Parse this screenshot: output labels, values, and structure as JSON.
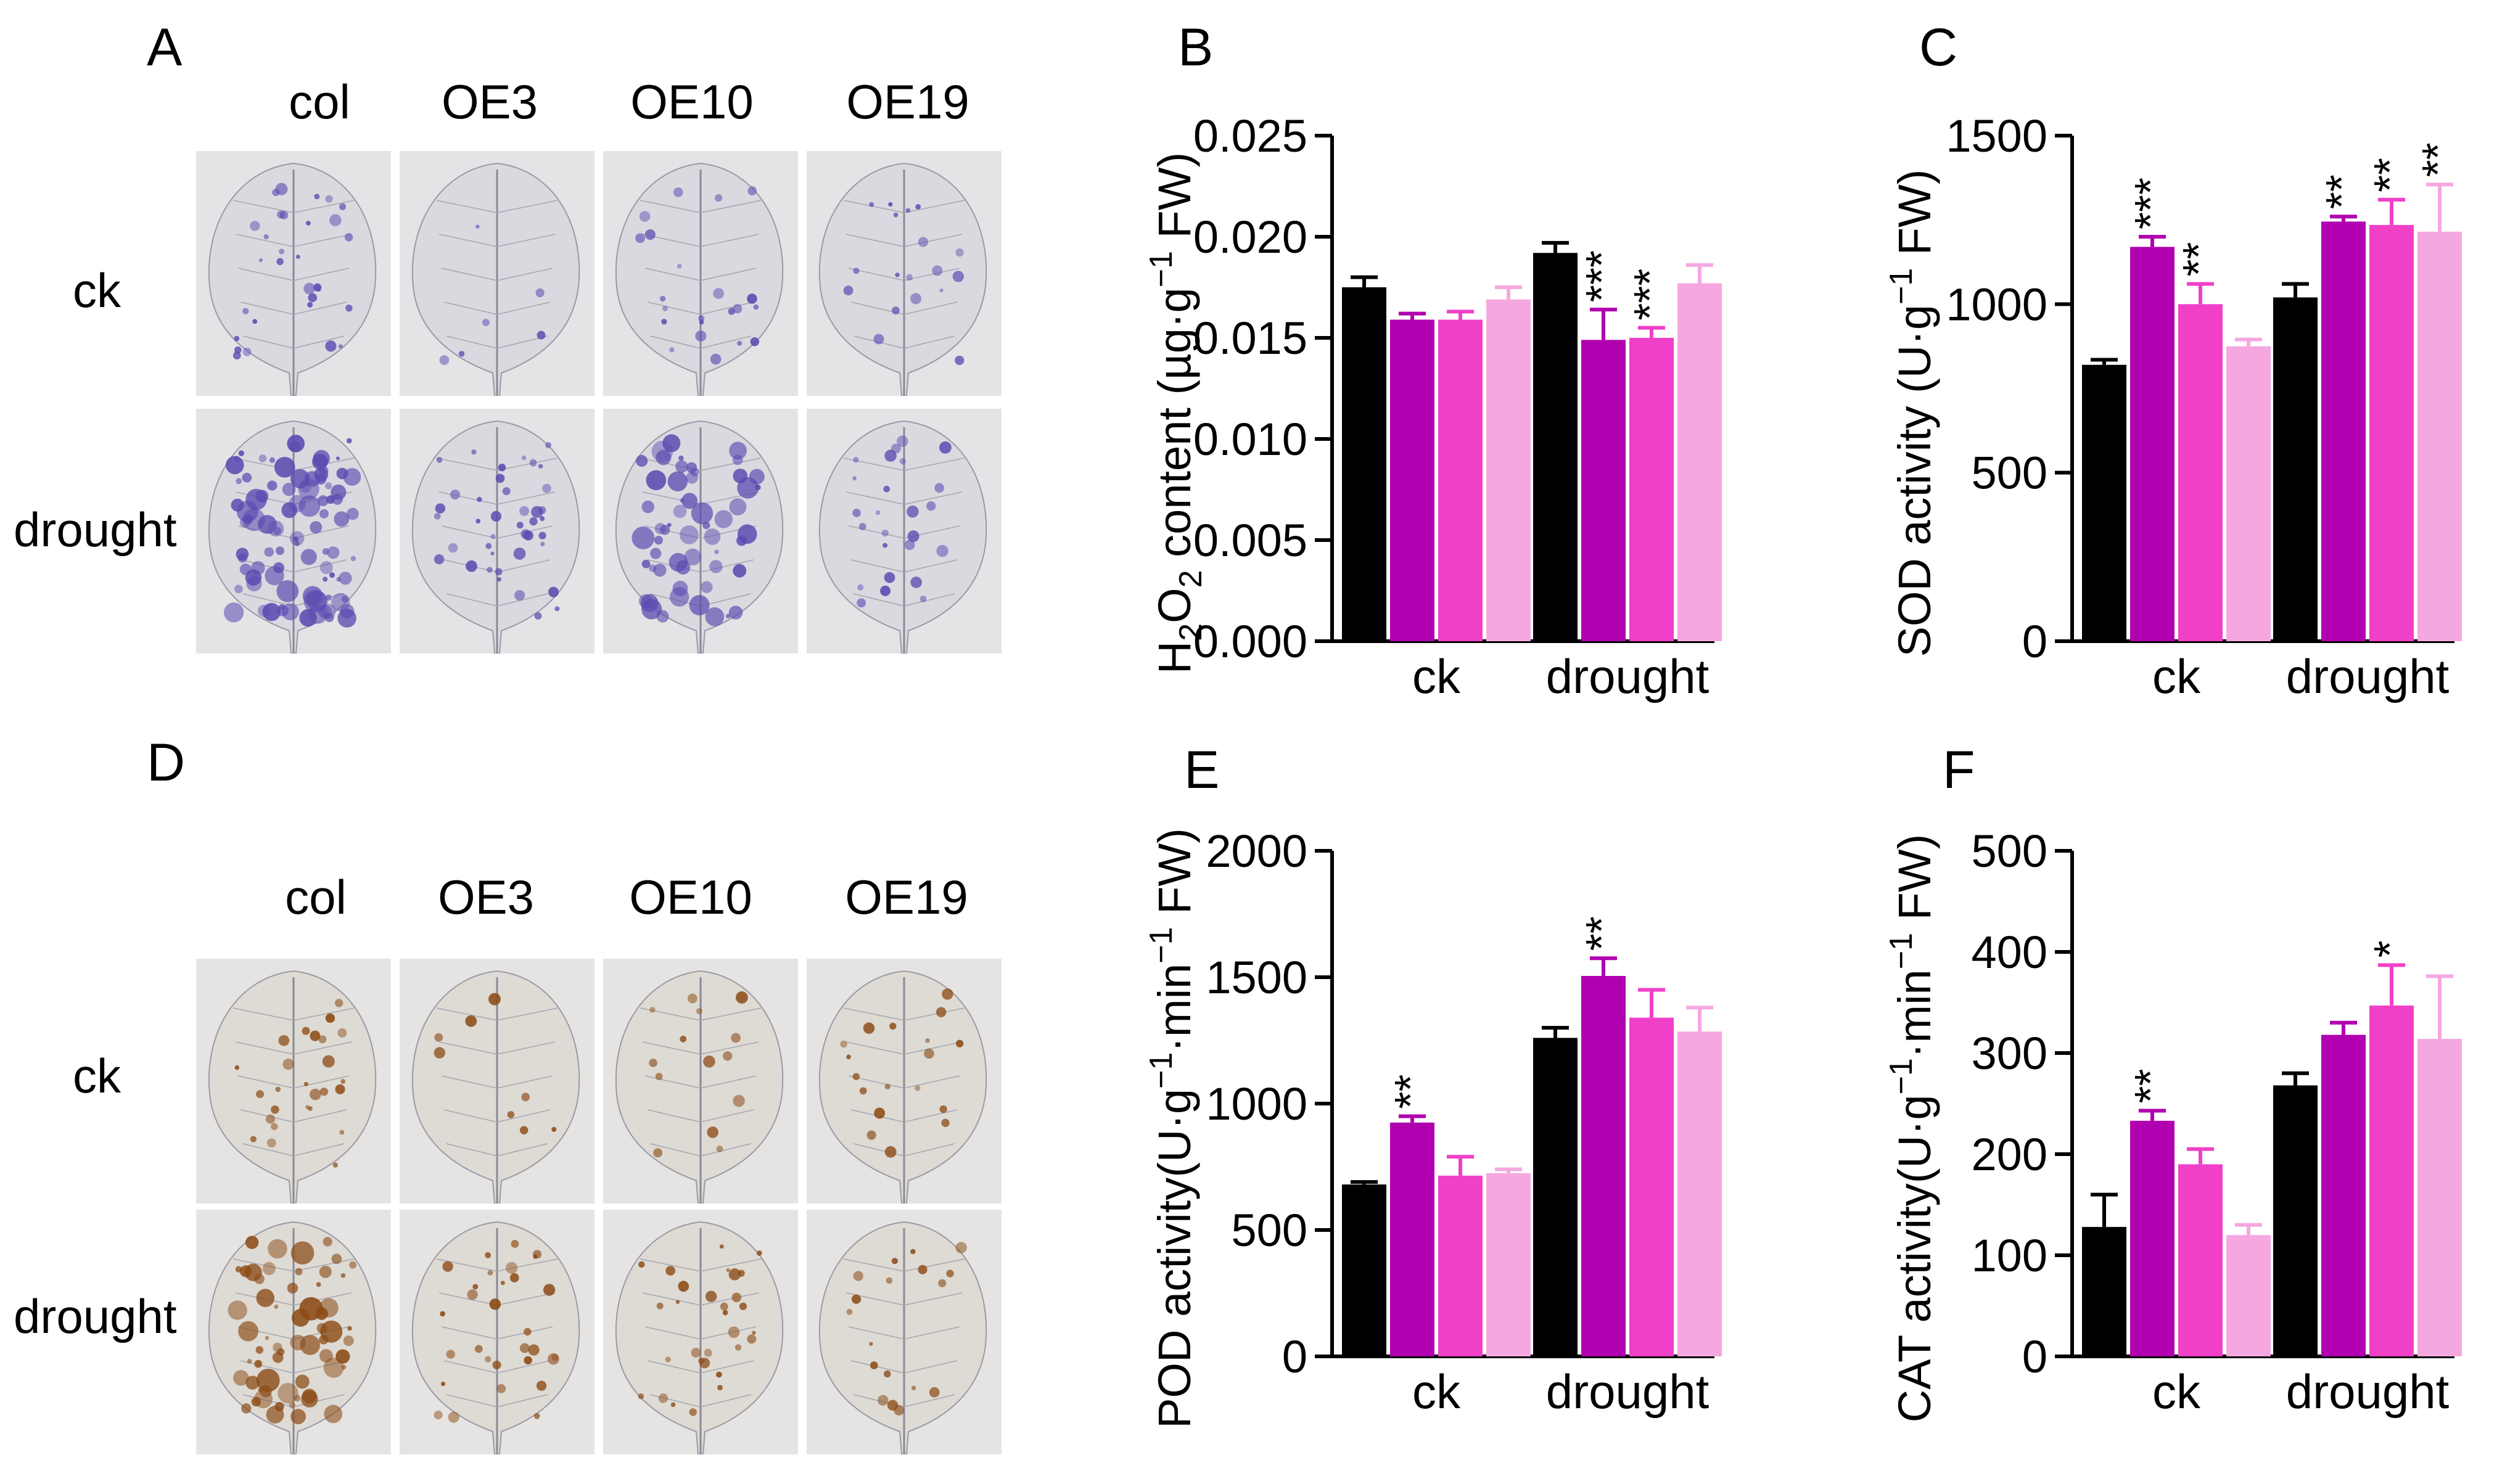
{
  "panels": {
    "A": {
      "letter": "A",
      "columns": [
        "col",
        "OE3",
        "OE10",
        "OE19"
      ],
      "rows": [
        "ck",
        "drought"
      ],
      "stain_color": "#5a4bb0"
    },
    "D": {
      "letter": "D",
      "columns": [
        "col",
        "OE3",
        "OE10",
        "OE19"
      ],
      "rows": [
        "ck",
        "drought"
      ],
      "stain_color": "#8b4a14"
    }
  },
  "series_colors": [
    "#000000",
    "#b000b0",
    "#f040c8",
    "#f5a8e0"
  ],
  "chart_data": [
    {
      "panel": "B",
      "type": "bar",
      "ylabel_parts": [
        "H",
        "2",
        "O",
        "2",
        " content (µg·g",
        "−1",
        " FW)"
      ],
      "ylabel": "H2O2 content (µg·g−1 FW)",
      "categories": [
        "ck",
        "drought"
      ],
      "ylim": [
        0,
        0.025
      ],
      "yticks": [
        0,
        0.005,
        0.01,
        0.015,
        0.02,
        0.025
      ],
      "ytick_labels": [
        "0.000",
        "0.005",
        "0.010",
        "0.015",
        "0.020",
        "0.025"
      ],
      "series": [
        {
          "name": "col",
          "values": [
            0.0175,
            0.0192
          ],
          "errors": [
            0.0005,
            0.0005
          ]
        },
        {
          "name": "OE3",
          "values": [
            0.0159,
            0.0149
          ],
          "errors": [
            0.0003,
            0.0015
          ]
        },
        {
          "name": "OE10",
          "values": [
            0.0159,
            0.015
          ],
          "errors": [
            0.0004,
            0.0005
          ]
        },
        {
          "name": "OE19",
          "values": [
            0.0169,
            0.0177
          ],
          "errors": [
            0.0006,
            0.0009
          ]
        }
      ],
      "annotations": [
        {
          "category": 1,
          "series": 1,
          "text": "***"
        },
        {
          "category": 1,
          "series": 2,
          "text": "***"
        }
      ]
    },
    {
      "panel": "C",
      "type": "bar",
      "ylabel_parts": [
        "SOD activity (U·g",
        "−1",
        " FW)"
      ],
      "ylabel": "SOD activity (U·g−1 FW)",
      "categories": [
        "ck",
        "drought"
      ],
      "ylim": [
        0,
        1500
      ],
      "yticks": [
        0,
        500,
        1000,
        1500
      ],
      "ytick_labels": [
        "0",
        "500",
        "1000",
        "1500"
      ],
      "series": [
        {
          "name": "col",
          "values": [
            820,
            1020
          ],
          "errors": [
            15,
            40
          ]
        },
        {
          "name": "OE3",
          "values": [
            1170,
            1245
          ],
          "errors": [
            30,
            15
          ]
        },
        {
          "name": "OE10",
          "values": [
            1000,
            1235
          ],
          "errors": [
            60,
            75
          ]
        },
        {
          "name": "OE19",
          "values": [
            875,
            1215
          ],
          "errors": [
            20,
            140
          ]
        }
      ],
      "annotations": [
        {
          "category": 0,
          "series": 1,
          "text": "***"
        },
        {
          "category": 0,
          "series": 2,
          "text": "**"
        },
        {
          "category": 1,
          "series": 1,
          "text": "**"
        },
        {
          "category": 1,
          "series": 2,
          "text": "**"
        },
        {
          "category": 1,
          "series": 3,
          "text": "**"
        }
      ]
    },
    {
      "panel": "E",
      "type": "bar",
      "ylabel_parts": [
        "POD activity(U·g",
        "−1",
        "·min",
        "−1",
        " FW)"
      ],
      "ylabel": "POD activity(U·g−1·min−1 FW)",
      "categories": [
        "ck",
        "drought"
      ],
      "ylim": [
        0,
        2000
      ],
      "yticks": [
        0,
        500,
        1000,
        1500,
        2000
      ],
      "ytick_labels": [
        "0",
        "500",
        "1000",
        "1500",
        "2000"
      ],
      "series": [
        {
          "name": "col",
          "values": [
            680,
            1260
          ],
          "errors": [
            10,
            40
          ]
        },
        {
          "name": "OE3",
          "values": [
            925,
            1505
          ],
          "errors": [
            25,
            70
          ]
        },
        {
          "name": "OE10",
          "values": [
            715,
            1340
          ],
          "errors": [
            75,
            110
          ]
        },
        {
          "name": "OE19",
          "values": [
            725,
            1285
          ],
          "errors": [
            15,
            95
          ]
        }
      ],
      "annotations": [
        {
          "category": 0,
          "series": 1,
          "text": "**"
        },
        {
          "category": 1,
          "series": 1,
          "text": "**"
        }
      ]
    },
    {
      "panel": "F",
      "type": "bar",
      "ylabel_parts": [
        "CAT activity(U·g",
        "−1",
        "·min",
        "−1",
        " FW)"
      ],
      "ylabel": "CAT activity(U·g−1·min−1 FW)",
      "categories": [
        "ck",
        "drought"
      ],
      "ylim": [
        0,
        500
      ],
      "yticks": [
        0,
        100,
        200,
        300,
        400,
        500
      ],
      "ytick_labels": [
        "0",
        "100",
        "200",
        "300",
        "400",
        "500"
      ],
      "series": [
        {
          "name": "col",
          "values": [
            128,
            268
          ],
          "errors": [
            32,
            12
          ]
        },
        {
          "name": "OE3",
          "values": [
            233,
            318
          ],
          "errors": [
            10,
            12
          ]
        },
        {
          "name": "OE10",
          "values": [
            190,
            347
          ],
          "errors": [
            15,
            40
          ]
        },
        {
          "name": "OE19",
          "values": [
            120,
            314
          ],
          "errors": [
            10,
            62
          ]
        }
      ],
      "annotations": [
        {
          "category": 0,
          "series": 1,
          "text": "**"
        },
        {
          "category": 1,
          "series": 2,
          "text": "*"
        }
      ]
    }
  ]
}
